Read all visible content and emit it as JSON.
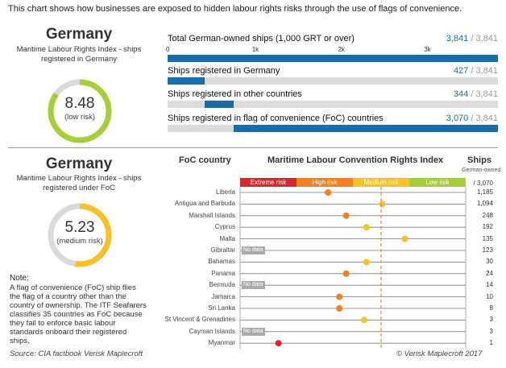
{
  "intro": "This chart shows how businesses are exposed to hidden labour rights risks through the use of flags of convenience.",
  "top": {
    "country": "Germany",
    "index_label": "Maritime Labour Rights Index - ships registered in Germany",
    "score": "8.48",
    "risk": "(low risk)",
    "score_fraction": 0.848,
    "ring_color": "#a6ce39",
    "total_label": "Total German-owned ships (1,000 GRT or over)",
    "axis_ticks": [
      "0",
      "1k",
      "2k",
      "3k"
    ],
    "axis_tick_values": [
      0,
      1000,
      2000,
      3000
    ],
    "axis_max": 3841,
    "rows": [
      {
        "label": "Total German-owned ships (1,000 GRT or over)",
        "value": 3841,
        "value_text": "3,841",
        "total_text": "/ 3,841"
      },
      {
        "label": "Ships registered in Germany",
        "value": 427,
        "value_text": "427",
        "total_text": "/ 3,841"
      },
      {
        "label": "Ships registered in other countries",
        "value": 344,
        "value_text": "344",
        "total_text": "/ 3,841"
      },
      {
        "label": "Ships registered in flag of convenience (FoC) countries",
        "value": 3070,
        "value_text": "3,070",
        "total_text": "/ 3,841"
      }
    ]
  },
  "bottom": {
    "country": "Germany",
    "index_label": "Maritime Labour Rights Index - ships registered under FoC",
    "score": "5.23",
    "risk": "(medium risk)",
    "score_fraction": 0.523,
    "ring_color": "#f8c224",
    "note_title": "Note:",
    "note_text": "A flag of convenience (FoC) ship flies the flag of a country other than the country of ownership. The ITF Seafarers classifies 35 countries as FoC because they fail to enforce basic labour standards onboard their registered ships."
  },
  "chart_data": {
    "type": "scatter",
    "title": "Maritime Labour Convention Rights Index",
    "col_foc": "FoC country",
    "col_ships": "Ships",
    "col_ships_sub": "German-owned",
    "ships_total": "/ 3,070",
    "nodata_label": "No data",
    "xlim": [
      0,
      10
    ],
    "medium_risk_threshold": 6.25,
    "categories": [
      {
        "label": "Extreme risk",
        "color": "#d7282f",
        "from": 0,
        "to": 2.5
      },
      {
        "label": "High risk",
        "color": "#f08223",
        "from": 2.5,
        "to": 5
      },
      {
        "label": "Medium risk",
        "color": "#f8c224",
        "from": 5,
        "to": 7.5
      },
      {
        "label": "Low risk",
        "color": "#a6ce39",
        "from": 7.5,
        "to": 10
      }
    ],
    "series": [
      {
        "country": "Liberia",
        "score": 3.9,
        "ships": "1,185",
        "color": "#f08223"
      },
      {
        "country": "Antigua and Barbuda",
        "score": 6.3,
        "ships": "1,094",
        "color": "#f8c224"
      },
      {
        "country": "Marshall Islands",
        "score": 4.7,
        "ships": "248",
        "color": "#f08223"
      },
      {
        "country": "Cyprus",
        "score": 5.6,
        "ships": "192",
        "color": "#f8c224"
      },
      {
        "country": "Malta",
        "score": 7.3,
        "ships": "135",
        "color": "#f8c224"
      },
      {
        "country": "Gibraltar",
        "score": null,
        "ships": "123",
        "color": "#aaaaaa"
      },
      {
        "country": "Bahamas",
        "score": 5.6,
        "ships": "30",
        "color": "#f8c224"
      },
      {
        "country": "Panama",
        "score": 4.7,
        "ships": "24",
        "color": "#f08223"
      },
      {
        "country": "Bermuda",
        "score": null,
        "ships": "14",
        "color": "#aaaaaa"
      },
      {
        "country": "Jamaica",
        "score": 4.4,
        "ships": "10",
        "color": "#f08223"
      },
      {
        "country": "Sri Lanka",
        "score": 4.4,
        "ships": "8",
        "color": "#f08223"
      },
      {
        "country": "St Vincent & Grenadines",
        "score": 5.5,
        "ships": "3",
        "color": "#f8c224"
      },
      {
        "country": "Cayman Islands",
        "score": null,
        "ships": "3",
        "color": "#aaaaaa"
      },
      {
        "country": "Myanmar",
        "score": 1.7,
        "ships": "1",
        "color": "#d7282f"
      }
    ]
  },
  "footer": {
    "source": "Source: CIA factbook  Verisk Maplecroft",
    "copyright": "© Verisk Maplecroft 2017"
  }
}
